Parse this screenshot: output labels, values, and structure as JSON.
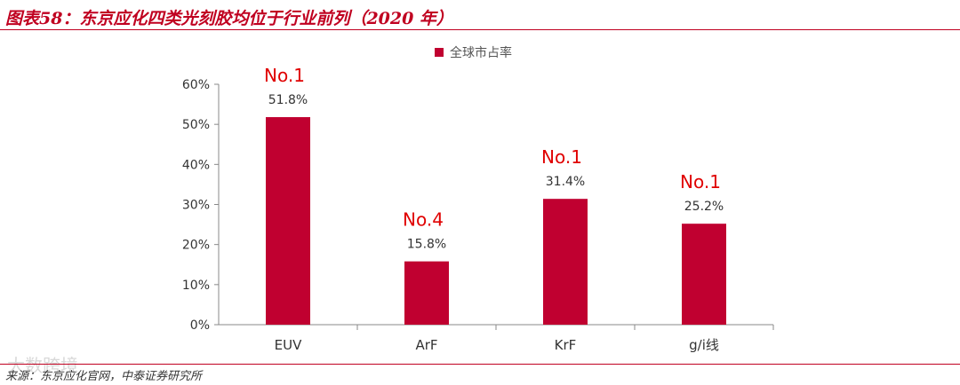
{
  "title": "图表58：东京应化四类光刻胶均位于行业前列（2020 年）",
  "source": "来源：东京应化官网，中泰证券研究所",
  "watermark": "大数跨境",
  "colors": {
    "bar": "#c00030",
    "accent": "#c00020",
    "rank": "#e00000"
  },
  "chart_data": {
    "type": "bar",
    "categories": [
      "EUV",
      "ArF",
      "KrF",
      "g/i线"
    ],
    "series": [
      {
        "name": "全球市占率",
        "values": [
          51.8,
          15.8,
          31.4,
          25.2
        ]
      }
    ],
    "data_labels": [
      "51.8%",
      "15.8%",
      "31.4%",
      "25.2%"
    ],
    "annotations": [
      "No.1",
      "No.4",
      "No.1",
      "No.1"
    ],
    "y_ticks": [
      "0%",
      "10%",
      "20%",
      "30%",
      "40%",
      "50%",
      "60%"
    ],
    "ylim": [
      0,
      60
    ],
    "legend": "top-center",
    "grid": false
  }
}
